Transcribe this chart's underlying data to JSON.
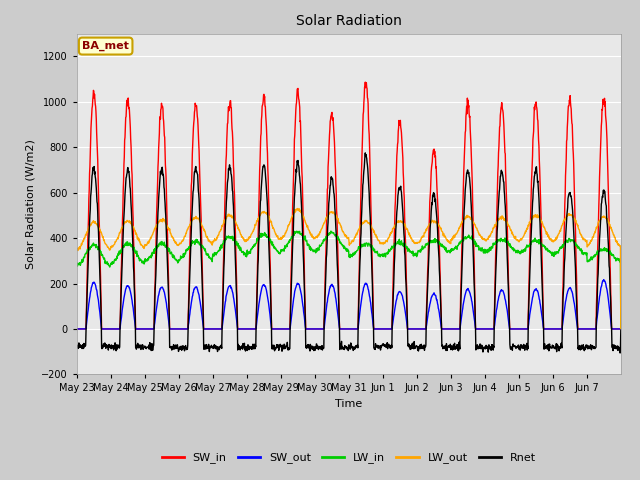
{
  "title": "Solar Radiation",
  "xlabel": "Time",
  "ylabel": "Solar Radiation (W/m2)",
  "ylim": [
    -200,
    1300
  ],
  "yticks": [
    -200,
    0,
    200,
    400,
    600,
    800,
    1000,
    1200
  ],
  "annotation_text": "BA_met",
  "annotation_color": "#8B0000",
  "annotation_bg": "#FFFFD0",
  "annotation_border": "#C8A000",
  "sw_in_color": "#FF0000",
  "sw_out_color": "#0000FF",
  "lw_in_color": "#00CC00",
  "lw_out_color": "#FFA500",
  "rnet_color": "#000000",
  "bg_color": "#CCCCCC",
  "plot_bg_color": "#E8E8E8",
  "line_width": 1.0,
  "n_days": 16,
  "xtick_labels": [
    "May 23",
    "May 24",
    "May 25",
    "May 26",
    "May 27",
    "May 28",
    "May 29",
    "May 30",
    "May 31",
    "Jun 1",
    "Jun 2",
    "Jun 3",
    "Jun 4",
    "Jun 5",
    "Jun 6",
    "Jun 7"
  ],
  "sw_in_peaks": [
    1040,
    1010,
    985,
    990,
    1000,
    1030,
    1040,
    950,
    1080,
    905,
    780,
    995,
    980,
    990,
    1005,
    1010
  ],
  "sw_out_peaks": [
    205,
    190,
    185,
    185,
    190,
    195,
    200,
    195,
    200,
    165,
    155,
    175,
    170,
    175,
    180,
    215
  ],
  "lw_in_base": [
    280,
    290,
    300,
    310,
    325,
    335,
    345,
    345,
    320,
    325,
    340,
    345,
    340,
    335,
    330,
    300
  ],
  "lw_in_peak_add": [
    90,
    85,
    75,
    75,
    80,
    80,
    80,
    80,
    55,
    55,
    50,
    60,
    55,
    55,
    60,
    50
  ],
  "lw_out_base": [
    350,
    360,
    370,
    375,
    385,
    395,
    400,
    400,
    375,
    375,
    380,
    395,
    390,
    390,
    385,
    365
  ],
  "lw_out_peak_add": [
    120,
    115,
    110,
    115,
    115,
    120,
    125,
    115,
    100,
    100,
    95,
    100,
    100,
    110,
    120,
    130
  ],
  "rnet_peaks": [
    710,
    700,
    705,
    710,
    715,
    720,
    730,
    660,
    760,
    625,
    595,
    700,
    695,
    700,
    605,
    605
  ],
  "rnet_night": [
    -75,
    -80,
    -80,
    -80,
    -80,
    -80,
    -80,
    -80,
    -80,
    -75,
    -80,
    -80,
    -80,
    -80,
    -80,
    -80
  ]
}
